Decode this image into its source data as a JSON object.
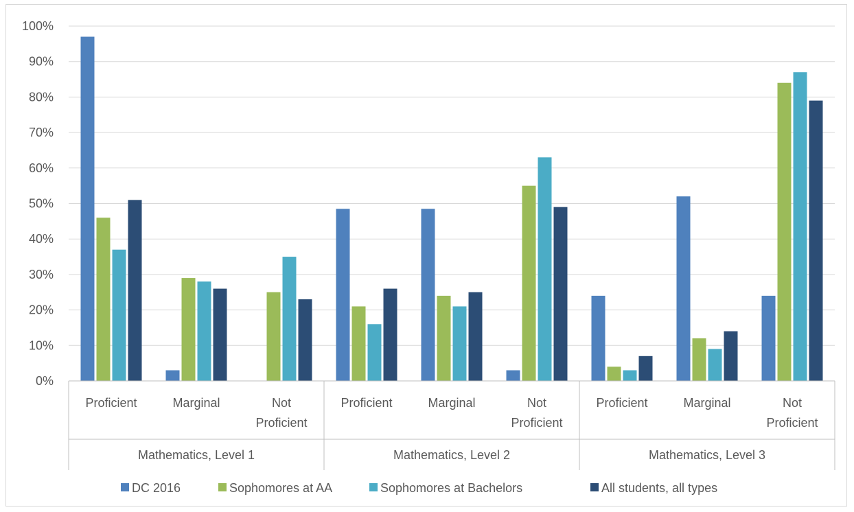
{
  "chart_data": {
    "type": "bar",
    "title": "",
    "ylim": [
      0,
      100
    ],
    "y_ticks": [
      "0%",
      "10%",
      "20%",
      "30%",
      "40%",
      "50%",
      "60%",
      "70%",
      "80%",
      "90%",
      "100%"
    ],
    "y_unit": "%",
    "grid": true,
    "legend_position": "bottom",
    "groups": [
      {
        "label": "Mathematics, Level 1",
        "categories": [
          "Proficient",
          "Marginal",
          "Not Proficient"
        ]
      },
      {
        "label": "Mathematics, Level 2",
        "categories": [
          "Proficient",
          "Marginal",
          "Not Proficient"
        ]
      },
      {
        "label": "Mathematics, Level 3",
        "categories": [
          "Proficient",
          "Marginal",
          "Not Proficient"
        ]
      }
    ],
    "category_lines": [
      [
        "Proficient"
      ],
      [
        "Marginal"
      ],
      [
        "Not",
        "Proficient"
      ],
      [
        "Proficient"
      ],
      [
        "Marginal"
      ],
      [
        "Not",
        "Proficient"
      ],
      [
        "Proficient"
      ],
      [
        "Marginal"
      ],
      [
        "Not",
        "Proficient"
      ]
    ],
    "series": [
      {
        "name": "DC 2016",
        "color": "#4f81bd",
        "values": [
          97,
          3,
          0,
          48.5,
          48.5,
          3,
          24,
          52,
          24
        ]
      },
      {
        "name": "Sophomores at AA",
        "color": "#9bbb59",
        "values": [
          46,
          29,
          25,
          21,
          24,
          55,
          4,
          12,
          84
        ]
      },
      {
        "name": "Sophomores at Bachelors",
        "color": "#4bacc6",
        "values": [
          37,
          28,
          35,
          16,
          21,
          63,
          3,
          9,
          87
        ]
      },
      {
        "name": "All students, all types",
        "color": "#2c4d75",
        "values": [
          51,
          26,
          23,
          26,
          25,
          49,
          7,
          14,
          79
        ]
      }
    ]
  }
}
